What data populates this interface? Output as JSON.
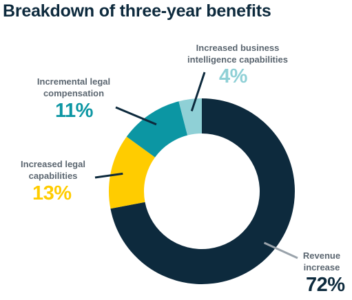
{
  "chart_data": {
    "type": "pie",
    "title": "Breakdown of three-year benefits",
    "slices": [
      {
        "line1": "Revenue",
        "line2": "increase",
        "percent_label": "72%",
        "value": 72,
        "color": "#0d2a3d",
        "leader_color": "#9aa3ab"
      },
      {
        "line1": "Increased legal",
        "line2": "capabilities",
        "percent_label": "13%",
        "value": 13,
        "color": "#ffcc00",
        "leader_color": "#0d2a3d"
      },
      {
        "line1": "Incremental legal",
        "line2": "compensation",
        "percent_label": "11%",
        "value": 11,
        "color": "#0c96a3",
        "leader_color": "#0d2a3d"
      },
      {
        "line1": "Increased business",
        "line2": "intelligence capabilities",
        "percent_label": "4%",
        "value": 4,
        "color": "#8fd0d6",
        "leader_color": "#0d2a3d"
      }
    ]
  }
}
